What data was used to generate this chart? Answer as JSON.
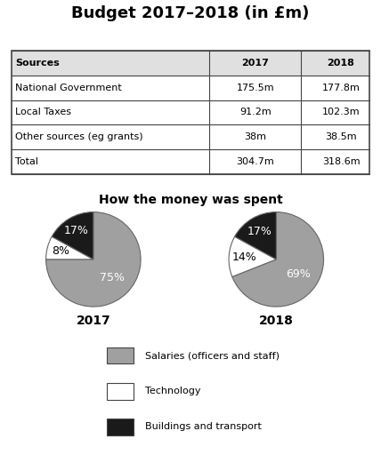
{
  "title": "Budget 2017–2018 (in £m)",
  "table_headers": [
    "Sources",
    "2017",
    "2018"
  ],
  "table_rows": [
    [
      "National Government",
      "175.5m",
      "177.8m"
    ],
    [
      "Local Taxes",
      "91.2m",
      "102.3m"
    ],
    [
      "Other sources (eg grants)",
      "38m",
      "38.5m"
    ],
    [
      "Total",
      "304.7m",
      "318.6m"
    ]
  ],
  "pie_title": "How the money was spent",
  "pie_2017": [
    75,
    8,
    17
  ],
  "pie_2018": [
    69,
    14,
    17
  ],
  "pie_colors": [
    "#a0a0a0",
    "#ffffff",
    "#1a1a1a"
  ],
  "pie_edge_color": "#555555",
  "pie_year_labels": [
    "2017",
    "2018"
  ],
  "legend_labels": [
    "Salaries (officers and staff)",
    "Technology",
    "Buildings and transport"
  ],
  "legend_colors": [
    "#a0a0a0",
    "#ffffff",
    "#1a1a1a"
  ],
  "bg_color": "#ffffff",
  "table_header_bg": "#e0e0e0",
  "startangle": 90
}
